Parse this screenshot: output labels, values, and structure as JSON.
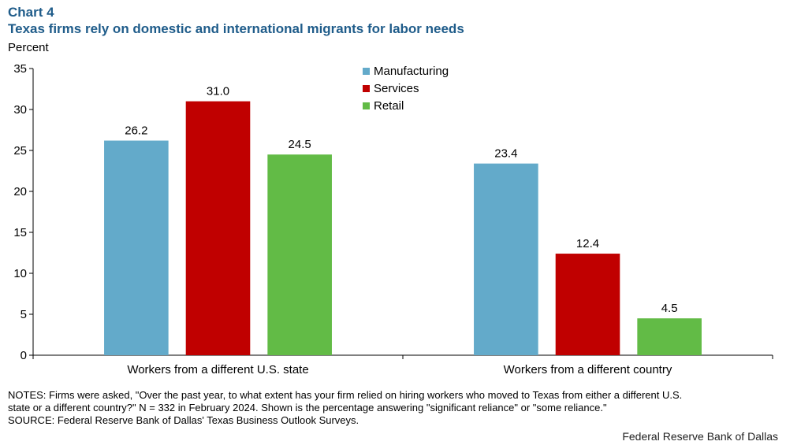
{
  "header": {
    "chart_number": "Chart 4",
    "title": "Texas firms rely on domestic and international migrants for labor needs"
  },
  "chart_data": {
    "type": "bar",
    "title": "Texas firms rely on domestic and international migrants for labor needs",
    "ylabel": "Percent",
    "xlabel": "",
    "ylim": [
      0,
      35
    ],
    "yticks": [
      0,
      5,
      10,
      15,
      20,
      25,
      30,
      35
    ],
    "categories": [
      "Workers from a different U.S. state",
      "Workers from a different country"
    ],
    "series": [
      {
        "name": "Manufacturing",
        "color": "#63aaca",
        "values": [
          26.2,
          23.4
        ],
        "labels": [
          "26.2",
          "23.4"
        ]
      },
      {
        "name": "Services",
        "color": "#c00000",
        "values": [
          31.0,
          12.4
        ],
        "labels": [
          "31.0",
          "12.4"
        ]
      },
      {
        "name": "Retail",
        "color": "#62bb46",
        "values": [
          24.5,
          4.5
        ],
        "labels": [
          "24.5",
          "4.5"
        ]
      }
    ],
    "legend_position": "top-center",
    "grid": false
  },
  "footer": {
    "notes_line1": "NOTES: Firms were asked, \"Over the past year, to what extent has your firm relied on hiring workers who moved to Texas from either a different U.S.",
    "notes_line2": "state or a different country?\" N = 332 in February 2024. Shown is the percentage answering \"significant reliance\" or \"some reliance.\"",
    "source": "SOURCE: Federal Reserve Bank of Dallas' Texas Business Outlook Surveys.",
    "credit": "Federal Reserve Bank of Dallas"
  }
}
